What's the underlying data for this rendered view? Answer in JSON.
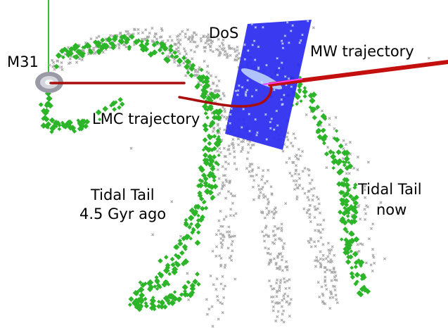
{
  "labels": {
    "m31": "M31",
    "dos": "DoS",
    "mw_trajectory": "MW trajectory",
    "lmc_trajectory": "LMC trajectory",
    "tidal_tail_old_line1": "Tidal Tail",
    "tidal_tail_old_line2": "4.5 Gyr ago",
    "tidal_tail_now_line1": "Tidal Tail",
    "tidal_tail_now_line2": "now"
  },
  "colors": {
    "background": "#ffffff",
    "old_tail_particles": "#2db52a",
    "current_tail_particles": "#a8a8a8",
    "dos_plane": "#2f2ff0",
    "trajectory": "#b00a0a",
    "z_axis": "#30c030"
  }
}
